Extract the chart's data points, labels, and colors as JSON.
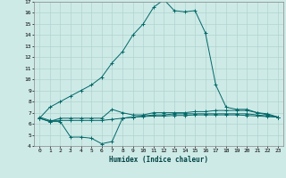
{
  "xlabel": "Humidex (Indice chaleur)",
  "bg_color": "#ceeae7",
  "grid_color": "#b0d4d0",
  "line_color": "#006868",
  "xlim": [
    -0.5,
    23.5
  ],
  "ylim": [
    4,
    17
  ],
  "xticks": [
    0,
    1,
    2,
    3,
    4,
    5,
    6,
    7,
    8,
    9,
    10,
    11,
    12,
    13,
    14,
    15,
    16,
    17,
    18,
    19,
    20,
    21,
    22,
    23
  ],
  "yticks": [
    4,
    5,
    6,
    7,
    8,
    9,
    10,
    11,
    12,
    13,
    14,
    15,
    16,
    17
  ],
  "series": [
    [
      6.5,
      7.5,
      8.0,
      8.5,
      9.0,
      9.5,
      10.2,
      11.5,
      12.5,
      14.0,
      15.0,
      16.5,
      17.2,
      16.2,
      16.1,
      16.2,
      14.2,
      9.5,
      7.5,
      7.3,
      7.3,
      7.0,
      6.8,
      6.6
    ],
    [
      6.5,
      6.2,
      6.5,
      6.5,
      6.5,
      6.5,
      6.5,
      7.3,
      7.0,
      6.8,
      6.8,
      7.0,
      7.0,
      7.0,
      7.0,
      7.1,
      7.1,
      7.2,
      7.2,
      7.2,
      7.2,
      7.0,
      6.9,
      6.6
    ],
    [
      6.5,
      6.2,
      6.2,
      4.8,
      4.8,
      4.7,
      4.2,
      4.4,
      6.5,
      6.6,
      6.7,
      6.8,
      6.8,
      6.9,
      6.9,
      6.9,
      6.9,
      6.9,
      6.9,
      6.9,
      6.9,
      6.8,
      6.7,
      6.6
    ],
    [
      6.6,
      6.3,
      6.3,
      6.3,
      6.3,
      6.3,
      6.3,
      6.4,
      6.5,
      6.6,
      6.65,
      6.7,
      6.7,
      6.75,
      6.75,
      6.8,
      6.8,
      6.8,
      6.8,
      6.8,
      6.75,
      6.7,
      6.65,
      6.6
    ]
  ]
}
